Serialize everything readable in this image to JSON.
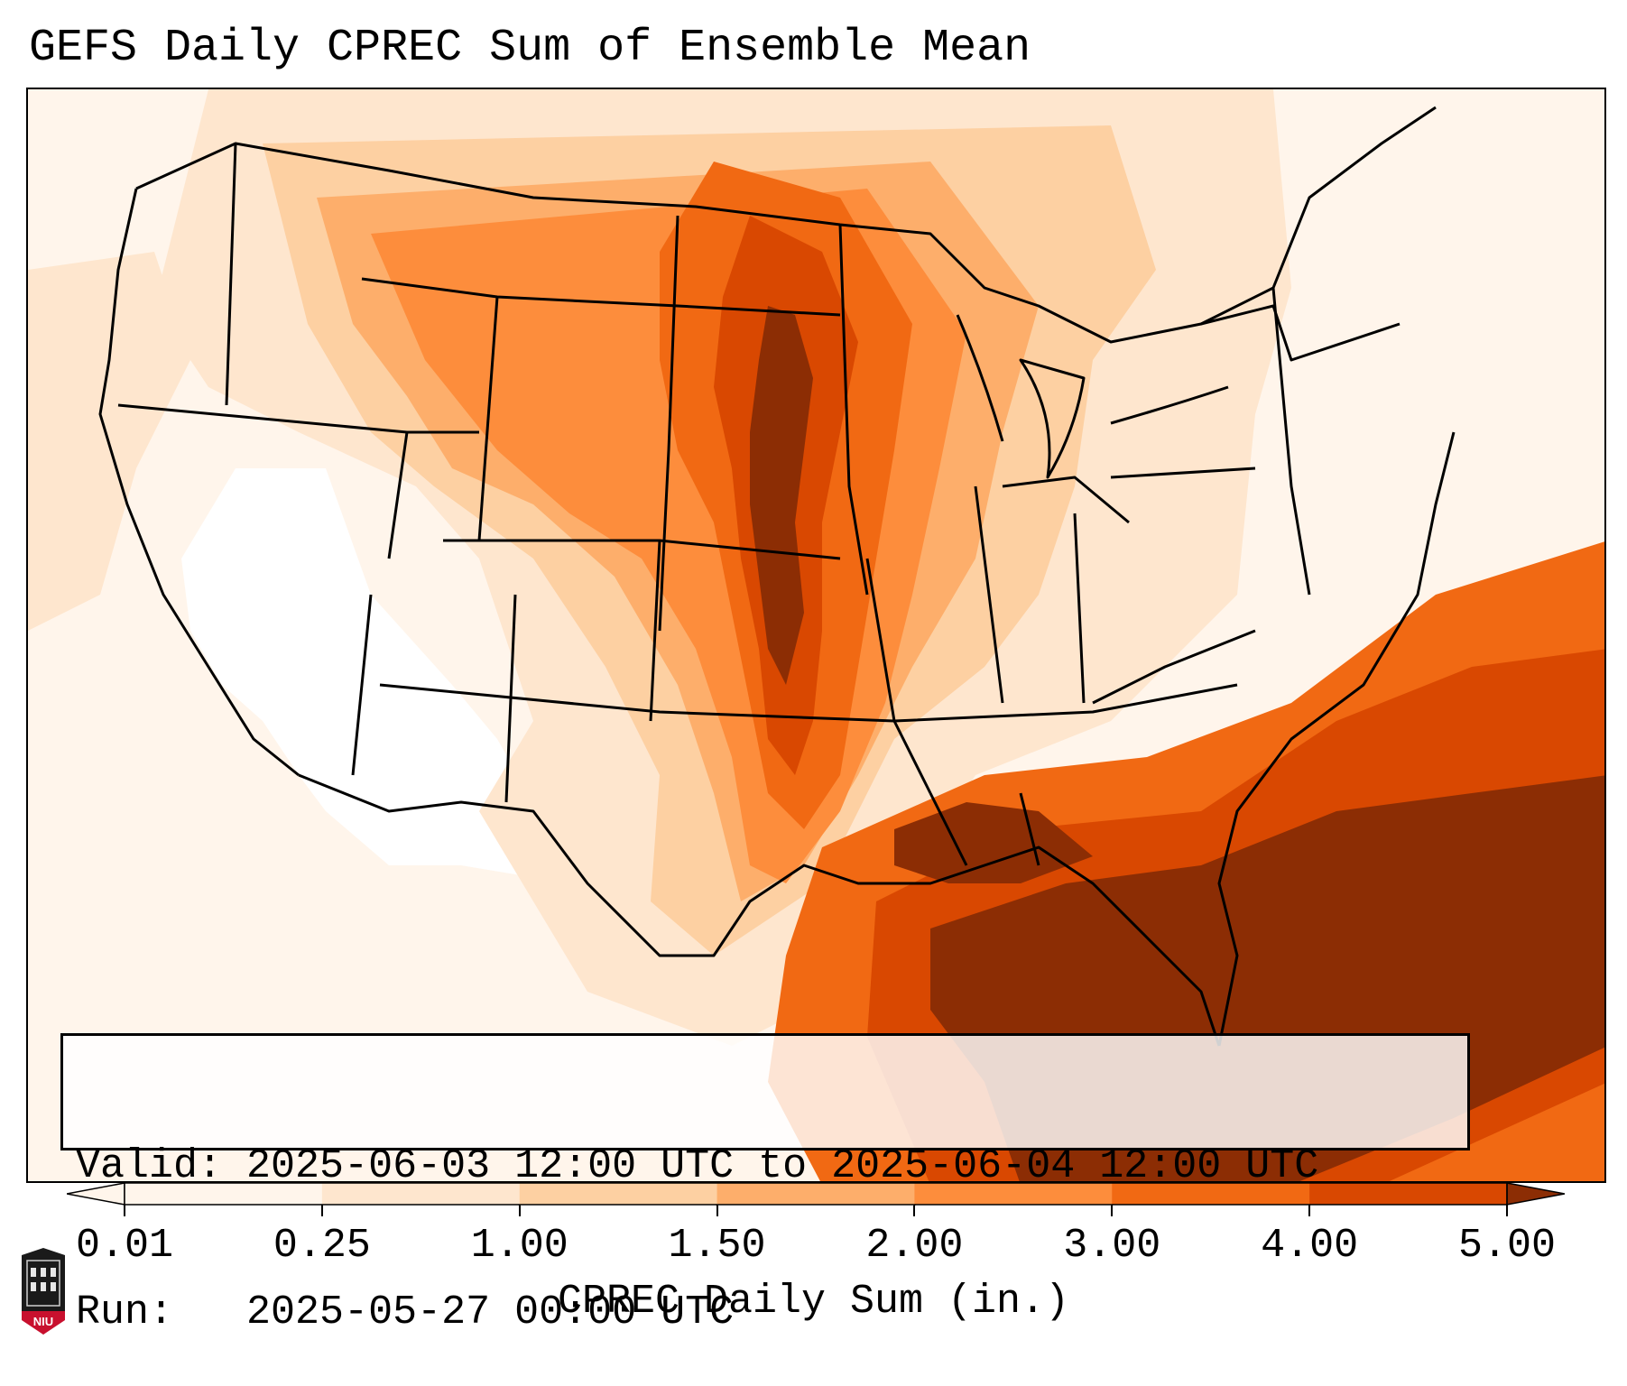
{
  "title": "GEFS Daily CPREC Sum of Ensemble Mean",
  "valid": {
    "valid_label": "Valid:",
    "valid_value": "2025-06-03 12:00 UTC to 2025-06-04 12:00 UTC",
    "run_label": "Run:",
    "run_value": "2025-05-27 00:00 UTC"
  },
  "colorbar": {
    "label": "CPREC Daily Sum (in.)",
    "ticks": [
      "0.01",
      "0.25",
      "1.00",
      "1.50",
      "2.00",
      "3.00",
      "4.00",
      "5.00"
    ],
    "colors": [
      "#fff5eb",
      "#fee6ce",
      "#fdd0a2",
      "#fdae6b",
      "#fd8d3c",
      "#f16913",
      "#d94801",
      "#8c2d04"
    ]
  },
  "logo": {
    "text": "NIU",
    "icon": "niu-logo-icon",
    "colors": {
      "dark": "#1a1a1a",
      "red": "#c8102e"
    }
  },
  "map": {
    "region": "Continental United States",
    "palette": {
      "none": "#ffffff",
      "trace": "#fff5eb",
      "light": "#fee6ce",
      "low": "#fdd0a2",
      "mid": "#fdae6b",
      "midhigh": "#fd8d3c",
      "high": "#f16913",
      "vhigh": "#d94801",
      "max": "#8c2d04",
      "border": "#000000"
    }
  }
}
